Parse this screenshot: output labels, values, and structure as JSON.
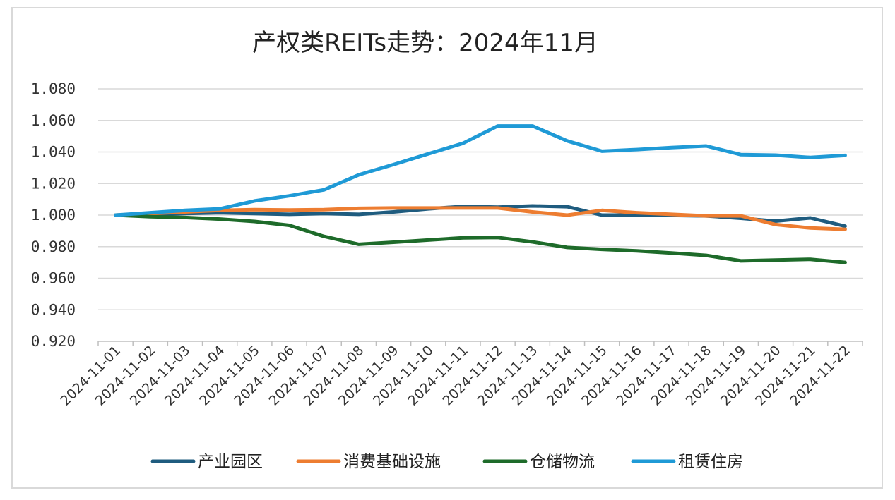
{
  "chart_data": {
    "type": "line",
    "title": "产权类REITs走势：2024年11月",
    "xlabel": "",
    "ylabel": "",
    "ylim": [
      0.92,
      1.08
    ],
    "y_ticks": [
      "1.080",
      "1.060",
      "1.040",
      "1.020",
      "1.000",
      "0.980",
      "0.960",
      "0.940",
      "0.920"
    ],
    "grid": true,
    "legend_position": "bottom",
    "categories": [
      "2024-11-01",
      "2024-11-02",
      "2024-11-03",
      "2024-11-04",
      "2024-11-05",
      "2024-11-06",
      "2024-11-07",
      "2024-11-08",
      "2024-11-09",
      "2024-11-10",
      "2024-11-11",
      "2024-11-12",
      "2024-11-13",
      "2024-11-14",
      "2024-11-15",
      "2024-11-16",
      "2024-11-17",
      "2024-11-18",
      "2024-11-19",
      "2024-11-20",
      "2024-11-21",
      "2024-11-22"
    ],
    "series": [
      {
        "name": "产业园区",
        "color": "#1f5c7f",
        "values": [
          1.0,
          1.0005,
          1.001,
          1.0015,
          1.001,
          1.0005,
          1.001,
          1.0005,
          1.002,
          1.004,
          1.0055,
          1.005,
          1.0058,
          1.0053,
          1.0,
          1.0,
          0.9998,
          0.9995,
          0.998,
          0.9962,
          0.9982,
          0.993
        ]
      },
      {
        "name": "消费基础设施",
        "color": "#ed7d31",
        "values": [
          1.0,
          1.001,
          1.002,
          1.003,
          1.0035,
          1.0032,
          1.0035,
          1.0043,
          1.0045,
          1.0045,
          1.0045,
          1.0045,
          1.002,
          1.0,
          1.003,
          1.0015,
          1.0005,
          0.9995,
          0.9995,
          0.994,
          0.9918,
          0.991
        ]
      },
      {
        "name": "仓储物流",
        "color": "#1e6b2a",
        "values": [
          1.0,
          0.999,
          0.9985,
          0.9975,
          0.996,
          0.9935,
          0.9865,
          0.9815,
          0.9828,
          0.9842,
          0.9856,
          0.9858,
          0.983,
          0.9795,
          0.9783,
          0.9773,
          0.976,
          0.9745,
          0.971,
          0.9715,
          0.972,
          0.97
        ]
      },
      {
        "name": "租赁住房",
        "color": "#1f9ad6",
        "values": [
          1.0,
          1.0015,
          1.003,
          1.004,
          1.009,
          1.0122,
          1.016,
          1.0255,
          1.032,
          1.0388,
          1.0455,
          1.0565,
          1.0565,
          1.047,
          1.0405,
          1.0415,
          1.0428,
          1.0438,
          1.0383,
          1.038,
          1.0365,
          1.0378
        ]
      }
    ]
  }
}
